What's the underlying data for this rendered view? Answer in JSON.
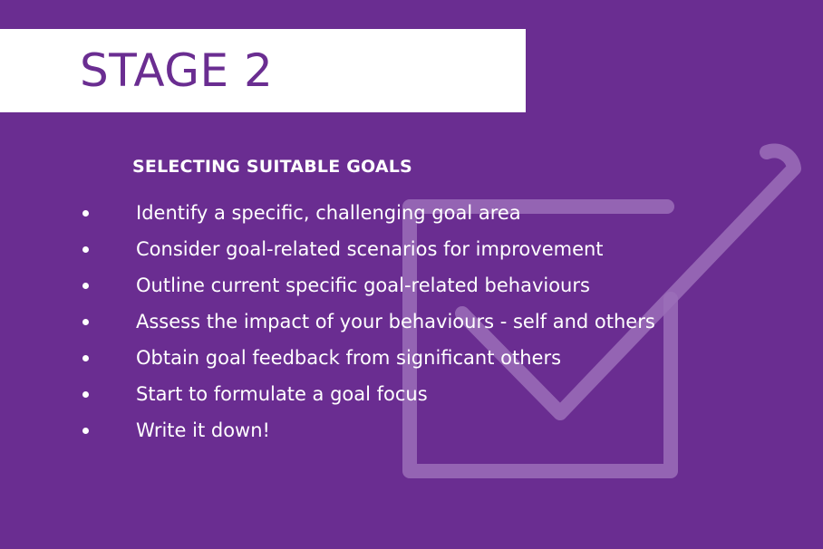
{
  "colors": {
    "background": "#6a2d91",
    "banner": "#ffffff",
    "title_text": "#6a2d91",
    "body_text": "#ffffff",
    "checkmark": "#9b6fb8"
  },
  "banner": {
    "title": "STAGE 2"
  },
  "section": {
    "heading": "SELECTING SUITABLE GOALS",
    "items": [
      {
        "text": "Identify a specific, challenging goal area"
      },
      {
        "text": "Consider goal-related scenarios for improvement"
      },
      {
        "text": "Outline current specific goal-related behaviours"
      },
      {
        "text": "Assess the impact of your behaviours - self and others"
      },
      {
        "text": "Obtain goal feedback from significant others"
      },
      {
        "text": "Start to formulate a goal focus"
      },
      {
        "text": "Write it down!"
      }
    ]
  },
  "graphic": {
    "icon": "checkbox-checkmark-icon"
  }
}
